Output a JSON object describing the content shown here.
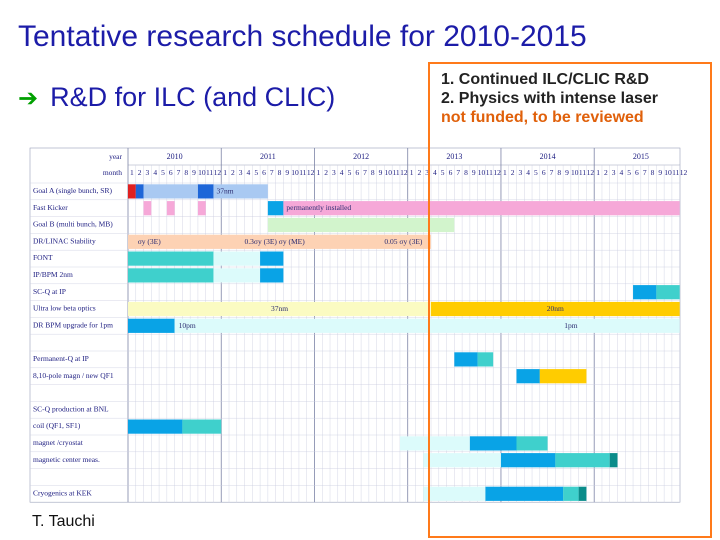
{
  "title": "Tentative research schedule for 2010-2015",
  "bullet": {
    "arrow": "➔",
    "text": "R&D for ILC (and CLIC)"
  },
  "notes": {
    "line1": "1. Continued ILC/CLIC R&D",
    "line2": "2. Physics with intense laser",
    "line3": "not funded, to be reviewed"
  },
  "author": "T. Tauchi",
  "schedule": {
    "header_year_label": "year",
    "header_month_label": "month",
    "years": [
      "2010",
      "2011",
      "2012",
      "2013",
      "2014",
      "2015"
    ],
    "rows": [
      "Goal A (single bunch, SR)",
      "Fast Kicker",
      "Goal B (multi bunch, MB)",
      "DR/LINAC Stability",
      "FONT",
      "IP/BPM 2nm",
      "SC-Q at IP",
      "Ultra low beta optics",
      "DR BPM upgrade for 1pm",
      "",
      "Permanent-Q at IP",
      "8,10-pole magn / new QF1",
      "",
      "SC-Q production at BNL",
      "coil (QF1, SF1)",
      "magnet /cryostat",
      "magnetic center meas.",
      "",
      "Cryogenics at KEK"
    ],
    "bar_labels": {
      "goal_a": "37nm",
      "kicker": "permanently installed",
      "stab1": "σy (3E)",
      "stab2": "0.3σy (3E) σy (ME)",
      "stab3": "0.05 σy (3E)",
      "optics1": "37nm",
      "optics2": "20nm",
      "bpm1": "10pm",
      "bpm2": "1pm"
    },
    "colors": {
      "red": "#e02020",
      "blue": "#1e66d8",
      "lightblue": "#a9c9f2",
      "cyan": "#09a3e6",
      "teal": "#3fd0cc",
      "lightcyan": "#dcfbfb",
      "pink": "#f6a8d8",
      "peach": "#fdd2b4",
      "lightgreen": "#d2f4cc",
      "lightyellow": "#fbfbc2",
      "gold": "#ffcc00",
      "darkteal": "#0a8c8a"
    }
  }
}
